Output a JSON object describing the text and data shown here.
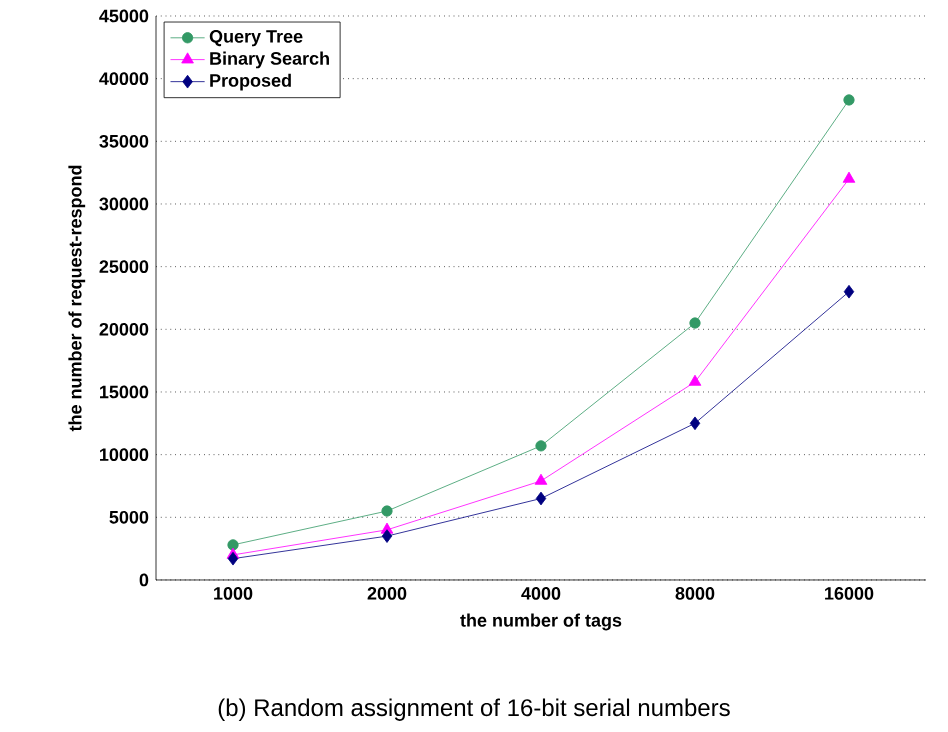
{
  "chart_data": {
    "type": "line",
    "xlabel": "the number of tags",
    "ylabel": "the number of request-respond",
    "categories": [
      "1000",
      "2000",
      "4000",
      "8000",
      "16000"
    ],
    "series": [
      {
        "name": "Query Tree",
        "color": "#339966",
        "marker": "circle",
        "values": [
          2800,
          5500,
          10700,
          20500,
          38300
        ]
      },
      {
        "name": "Binary Search",
        "color": "#ff00ff",
        "marker": "triangle",
        "values": [
          2000,
          4000,
          7900,
          15800,
          32000
        ]
      },
      {
        "name": "Proposed",
        "color": "#000080",
        "marker": "diamond",
        "values": [
          1700,
          3500,
          6500,
          12500,
          23000
        ]
      }
    ],
    "ylim": [
      0,
      45000
    ],
    "yticks": [
      0,
      5000,
      10000,
      15000,
      20000,
      25000,
      30000,
      35000,
      40000,
      45000
    ],
    "grid": "y",
    "legend": "top left",
    "annotations": [
      "(b) Random assignment of 16-bit serial numbers"
    ]
  }
}
